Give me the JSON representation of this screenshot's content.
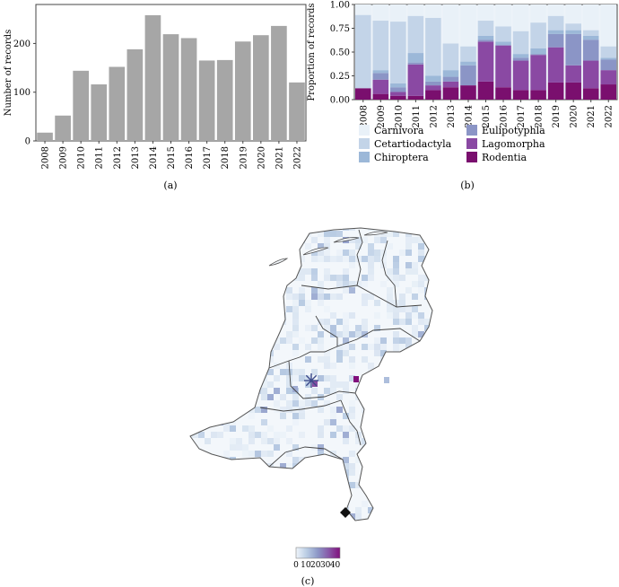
{
  "panels": {
    "a": {
      "caption": "(a)"
    },
    "b": {
      "caption": "(b)"
    },
    "c": {
      "caption": "(c)"
    }
  },
  "chart_data": [
    {
      "panel": "a",
      "type": "bar",
      "categories": [
        "2008",
        "2009",
        "2010",
        "2011",
        "2012",
        "2013",
        "2014",
        "2015",
        "2016",
        "2017",
        "2018",
        "2019",
        "2020",
        "2021",
        "2022"
      ],
      "values": [
        17,
        52,
        144,
        116,
        152,
        188,
        258,
        219,
        211,
        165,
        166,
        204,
        217,
        236,
        120
      ],
      "ylabel": "Number of records",
      "xlabel": "",
      "ylim": [
        0,
        280
      ],
      "yticks": [
        0,
        100,
        200
      ],
      "bar_color": "#a6a6a6",
      "grid": false
    },
    {
      "panel": "b",
      "type": "bar",
      "stacked": true,
      "categories": [
        "2008",
        "2009",
        "2010",
        "2011",
        "2012",
        "2013",
        "2014",
        "2015",
        "2016",
        "2017",
        "2018",
        "2019",
        "2020",
        "2021",
        "2022"
      ],
      "ylabel": "Proportion of records",
      "ylim": [
        0,
        1.0
      ],
      "yticks": [
        0.0,
        0.25,
        0.5,
        0.75,
        1.0
      ],
      "ytick_labels": [
        "0.00",
        "0.25",
        "0.50",
        "0.75",
        "1.00"
      ],
      "legend_position": "bottom",
      "series": [
        {
          "name": "Rodentia",
          "color": "#7a0f6e",
          "values": [
            0.12,
            0.06,
            0.04,
            0.04,
            0.1,
            0.13,
            0.15,
            0.19,
            0.13,
            0.1,
            0.1,
            0.18,
            0.18,
            0.12,
            0.16
          ]
        },
        {
          "name": "Lagomorpha",
          "color": "#8a49a3",
          "values": [
            0.0,
            0.15,
            0.04,
            0.33,
            0.05,
            0.06,
            0.0,
            0.42,
            0.44,
            0.31,
            0.37,
            0.37,
            0.18,
            0.29,
            0.15
          ]
        },
        {
          "name": "Eulipotyphla",
          "color": "#8b95c6",
          "values": [
            0.0,
            0.07,
            0.05,
            0.02,
            0.04,
            0.05,
            0.21,
            0.02,
            0.0,
            0.03,
            0.01,
            0.14,
            0.33,
            0.22,
            0.11
          ]
        },
        {
          "name": "Chiroptera",
          "color": "#9cb8d8",
          "values": [
            0.0,
            0.03,
            0.04,
            0.1,
            0.06,
            0.07,
            0.04,
            0.04,
            0.04,
            0.04,
            0.06,
            0.04,
            0.04,
            0.04,
            0.02
          ]
        },
        {
          "name": "Cetartiodactyla",
          "color": "#c3d4e8",
          "values": [
            0.77,
            0.52,
            0.65,
            0.39,
            0.61,
            0.28,
            0.16,
            0.16,
            0.16,
            0.24,
            0.27,
            0.15,
            0.07,
            0.06,
            0.12
          ]
        },
        {
          "name": "Carnivora",
          "color": "#e9f1f8",
          "values": [
            0.11,
            0.17,
            0.18,
            0.12,
            0.14,
            0.41,
            0.44,
            0.17,
            0.23,
            0.28,
            0.19,
            0.12,
            0.2,
            0.27,
            0.44
          ]
        }
      ],
      "legend_order": [
        "Carnivora",
        "Cetartiodactyla",
        "Chiroptera",
        "Eulipotyphla",
        "Lagomorpha",
        "Rodentia"
      ]
    },
    {
      "panel": "c",
      "type": "heatmap",
      "colorbar": {
        "ticks": [
          0,
          10,
          20,
          30,
          40
        ],
        "range": [
          0,
          45
        ],
        "colors": [
          "#eef4fa",
          "#b8cbe3",
          "#8c96c6",
          "#8856a7",
          "#810f7c"
        ]
      },
      "hotspots": [
        {
          "value": 35
        },
        {
          "value": 18
        },
        {
          "value": 45
        },
        {
          "value": 14
        }
      ],
      "markers": [
        {
          "name": "asterisk-marker",
          "symbol": "asterisk"
        },
        {
          "name": "diamond-marker",
          "symbol": "diamond"
        }
      ]
    }
  ]
}
